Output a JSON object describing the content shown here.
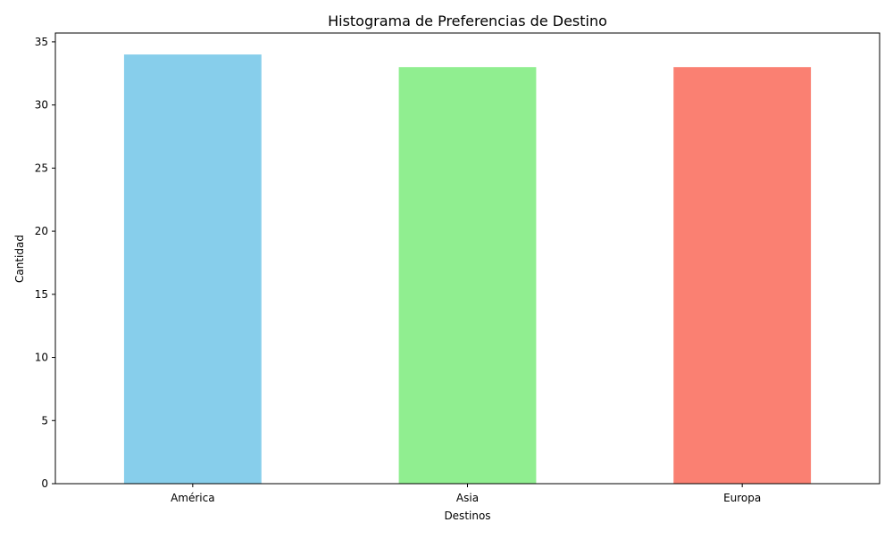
{
  "chart_data": {
    "type": "bar",
    "title": "Histograma de Preferencias de Destino",
    "xlabel": "Destinos",
    "ylabel": "Cantidad",
    "categories": [
      "América",
      "Asia",
      "Europa"
    ],
    "values": [
      34,
      33,
      33
    ],
    "colors": [
      "#87ceeb",
      "#90ee90",
      "#fa8072"
    ],
    "ylim": [
      0,
      35.7
    ],
    "yticks": [
      0,
      5,
      10,
      15,
      20,
      25,
      30,
      35
    ],
    "grid": false,
    "legend": "none"
  }
}
